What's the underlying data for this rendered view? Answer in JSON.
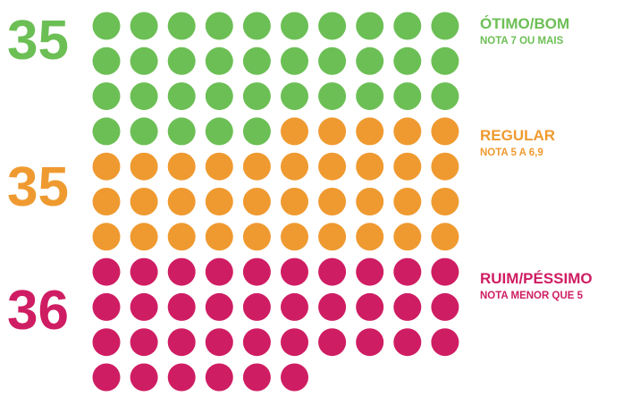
{
  "chart_data": {
    "type": "dot-matrix",
    "columns": 10,
    "series": [
      {
        "name": "ÓTIMO/BOM",
        "subtitle": "NOTA 7 OU MAIS",
        "value": 35,
        "count_label": "35",
        "color": "#6cbf55"
      },
      {
        "name": "REGULAR",
        "subtitle": "NOTA 5 A 6,9",
        "value": 35,
        "count_label": "35",
        "color": "#ef9a30"
      },
      {
        "name": "RUIM/PÉSSIMO",
        "subtitle": "NOTA MENOR QUE 5",
        "value": 36,
        "count_label": "36",
        "color": "#cf1d63"
      }
    ]
  }
}
